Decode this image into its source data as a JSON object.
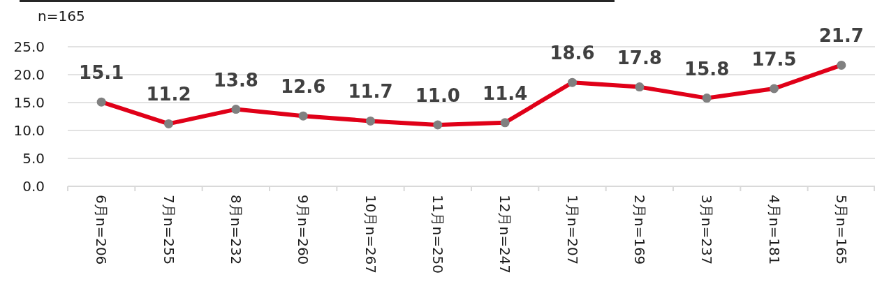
{
  "chart_data": {
    "type": "line",
    "subtitle": "n=165",
    "categories": [
      "6月n=206",
      "7月n=255",
      "8月n=232",
      "9月n=260",
      "10月n=267",
      "11月n=250",
      "12月n=247",
      "1月n=207",
      "2月n=169",
      "3月n=237",
      "4月n=181",
      "5月n=165"
    ],
    "series": [
      {
        "color": "#e00018",
        "colors": [
          "#808080",
          "#808080",
          "#808080",
          "#808080",
          "#808080",
          "#808080",
          "#808080",
          "#808080",
          "#808080",
          "#808080",
          "#808080",
          "#808080"
        ],
        "values": [
          15.1,
          11.2,
          13.8,
          12.6,
          11.7,
          11.0,
          11.4,
          18.6,
          17.8,
          15.8,
          17.5,
          21.7
        ],
        "value_labels": [
          "15.1",
          "11.2",
          "13.8",
          "12.6",
          "11.7",
          "11.0",
          "11.4",
          "18.6",
          "17.8",
          "15.8",
          "17.5",
          "21.7"
        ]
      }
    ],
    "ylim": [
      0,
      25
    ],
    "yticks": [
      {
        "value": 0,
        "label": "0.0"
      },
      {
        "value": 5,
        "label": "5.0"
      },
      {
        "value": 10,
        "label": "10.0"
      },
      {
        "value": 15,
        "label": "15.0"
      },
      {
        "value": 20,
        "label": "20.0"
      },
      {
        "value": 25,
        "label": "25.0"
      }
    ],
    "grid": "y",
    "marker": "circle",
    "line_style": "solid"
  }
}
